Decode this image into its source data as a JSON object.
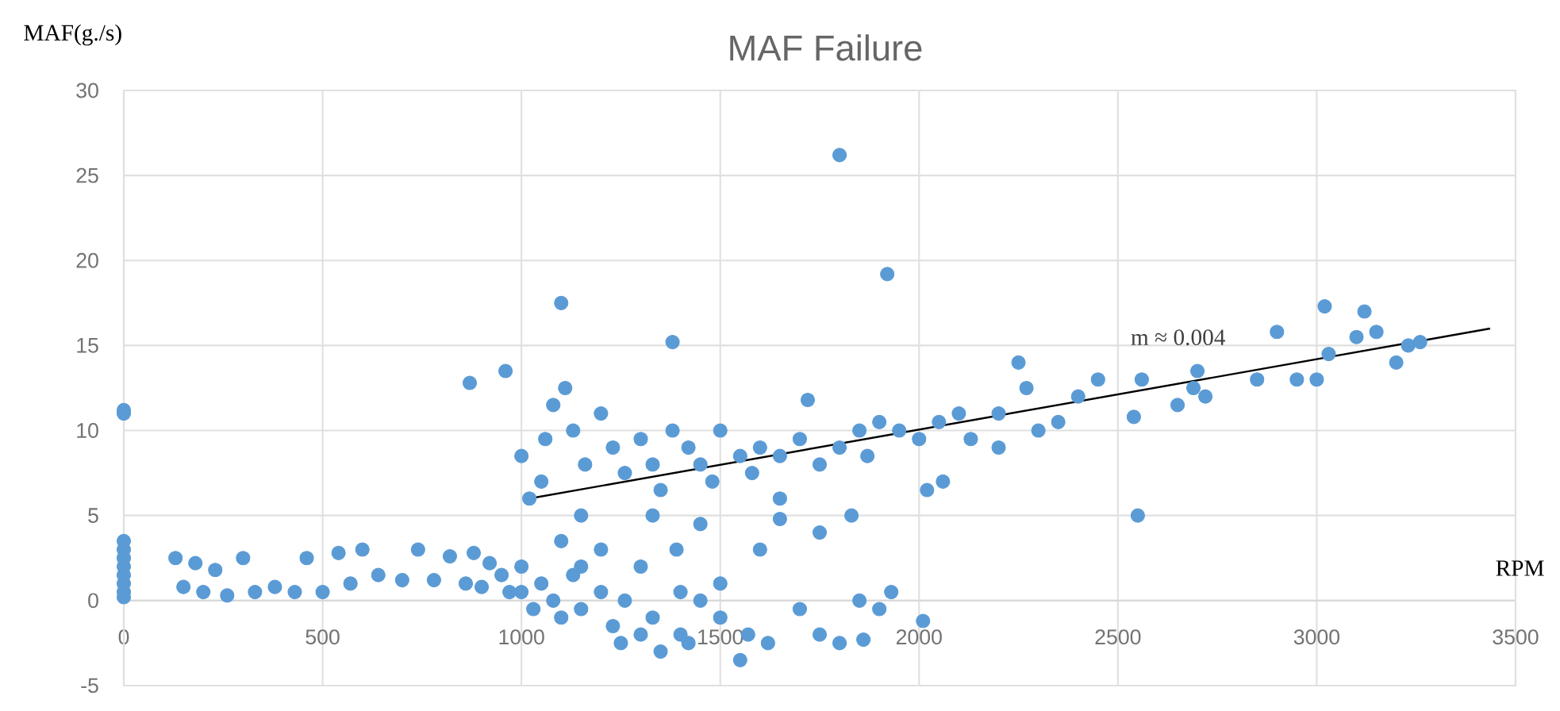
{
  "chart_data": {
    "type": "scatter",
    "title": "MAF Failure",
    "xlabel": "RPM",
    "ylabel": "MAF(g./s)",
    "xlim": [
      0,
      3500
    ],
    "xticks": [
      0,
      500,
      1000,
      1500,
      2000,
      2500,
      3000,
      3500
    ],
    "ylim": [
      -5,
      30
    ],
    "yticks": [
      -5,
      0,
      5,
      10,
      15,
      20,
      25,
      30
    ],
    "grid": true,
    "annotations": [
      "m ≈ 0.004"
    ],
    "series": [
      {
        "marker": "circle",
        "color": "#5b9bd5",
        "x": [
          0,
          0,
          0,
          0,
          0,
          0,
          0,
          0,
          0,
          0,
          130,
          150,
          180,
          200,
          230,
          260,
          300,
          330,
          380,
          430,
          460,
          500,
          540,
          570,
          600,
          640,
          700,
          740,
          780,
          820,
          860,
          880,
          900,
          920,
          950,
          970,
          1000,
          1000,
          1030,
          1050,
          1080,
          1100,
          1130,
          1150,
          1200,
          1230,
          1260,
          1300,
          1330,
          1350,
          1400,
          1450,
          1500,
          1550,
          1570,
          1620,
          1700,
          1750,
          1800,
          1900,
          1860,
          1850,
          1930,
          2010,
          1420,
          1250,
          1150,
          1200,
          870,
          960,
          1100,
          1380,
          1800,
          1920,
          2550,
          1000,
          1020,
          1050,
          1060,
          1080,
          1110,
          1130,
          1160,
          1200,
          1230,
          1260,
          1300,
          1330,
          1350,
          1380,
          1420,
          1450,
          1480,
          1500,
          1550,
          1580,
          1600,
          1650,
          1700,
          1720,
          1750,
          1800,
          1850,
          1870,
          1900,
          1950,
          2000,
          2050,
          2100,
          2130,
          2200,
          2250,
          2270,
          2300,
          2350,
          2400,
          2450,
          2200,
          1650,
          1450,
          1390,
          1600,
          1750,
          1830,
          1650,
          1330,
          2020,
          2060,
          1300,
          1500,
          1400,
          1100,
          1150,
          2540,
          2560,
          2650,
          2690,
          2700,
          2720,
          2850,
          2900,
          2950,
          3000,
          3020,
          3030,
          3100,
          3120,
          3150,
          3200,
          3230,
          3260
        ],
        "values": [
          11,
          11.2,
          3.5,
          2.5,
          1.5,
          0.5,
          3,
          2,
          1,
          0.2,
          2.5,
          0.8,
          2.2,
          0.5,
          1.8,
          0.3,
          2.5,
          0.5,
          0.8,
          0.5,
          2.5,
          0.5,
          2.8,
          1,
          3,
          1.5,
          1.2,
          3,
          1.2,
          2.6,
          1,
          2.8,
          0.8,
          2.2,
          1.5,
          0.5,
          2,
          0.5,
          -0.5,
          1,
          0,
          -1,
          1.5,
          -0.5,
          0.5,
          -1.5,
          0,
          -2,
          -1,
          -3,
          -2,
          0,
          -1,
          -3.5,
          -2,
          -2.5,
          -0.5,
          -2,
          -2.5,
          -0.5,
          -2.3,
          0,
          0.5,
          -1.2,
          -2.5,
          -2.5,
          2,
          3,
          12.8,
          13.5,
          17.5,
          15.2,
          26.2,
          19.2,
          5,
          8.5,
          6,
          7,
          9.5,
          11.5,
          12.5,
          10,
          8,
          11,
          9,
          7.5,
          9.5,
          8,
          6.5,
          10,
          9,
          8,
          7,
          10,
          8.5,
          7.5,
          9,
          8.5,
          9.5,
          11.8,
          8,
          9,
          10,
          8.5,
          10.5,
          10,
          9.5,
          10.5,
          11,
          9.5,
          11,
          14,
          12.5,
          10,
          10.5,
          12,
          13,
          9,
          6,
          4.5,
          3,
          3,
          4,
          5,
          4.8,
          5,
          6.5,
          7,
          2,
          1,
          0.5,
          3.5,
          5,
          10.8,
          13,
          11.5,
          12.5,
          13.5,
          12,
          13,
          15.8,
          13,
          13,
          17.3,
          14.5,
          15.5,
          17,
          15.8,
          14,
          15,
          15.2
        ]
      },
      {
        "type": "line",
        "marker": "none",
        "color": "#000000",
        "x": [
          1020,
          3436
        ],
        "values": [
          6,
          16
        ]
      }
    ]
  }
}
